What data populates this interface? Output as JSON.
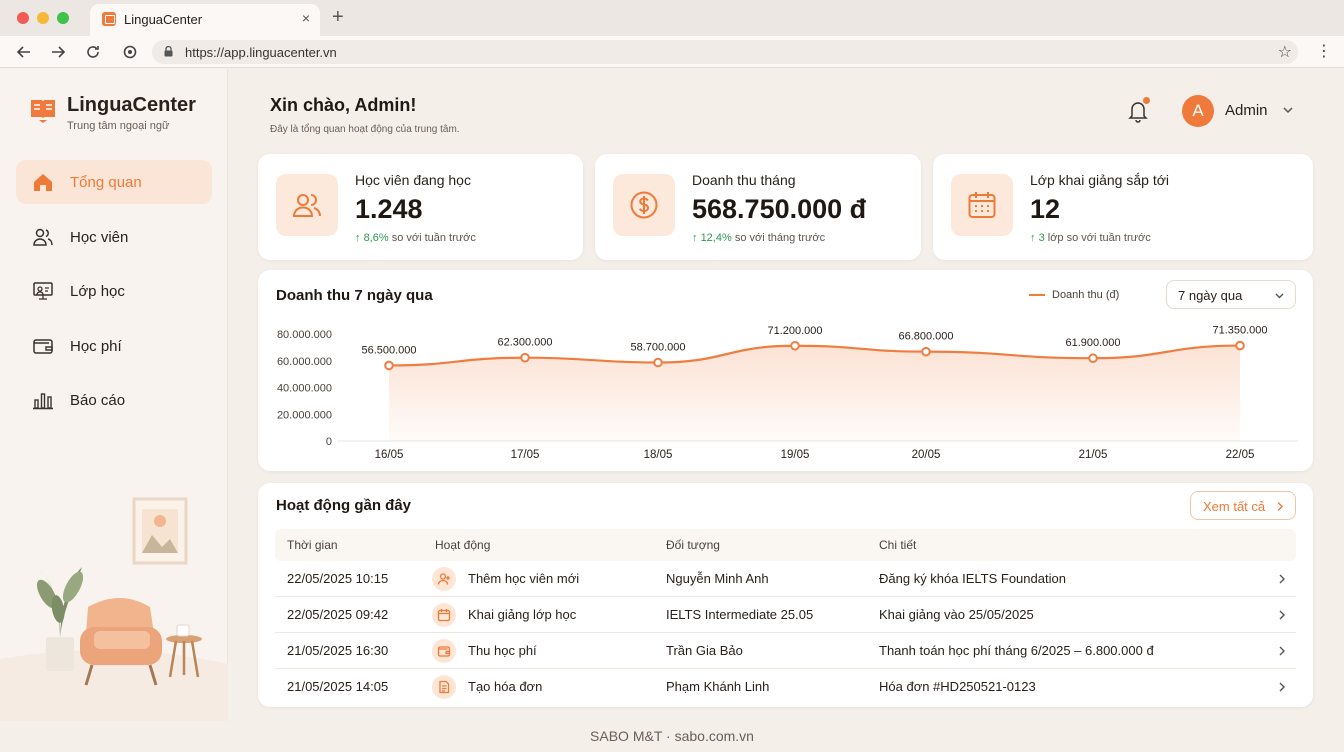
{
  "browser": {
    "tab_title": "LinguaCenter",
    "tab_close": "×",
    "new_tab": "+",
    "url": "https://app.linguacenter.vn"
  },
  "sidebar": {
    "brand": "LinguaCenter",
    "brand_sub": "Trung tâm ngoại ngữ",
    "items": [
      {
        "label": "Tổng quan",
        "icon": "home-icon",
        "active": true
      },
      {
        "label": "Học viên",
        "icon": "users-icon",
        "active": false
      },
      {
        "label": "Lớp học",
        "icon": "classroom-icon",
        "active": false
      },
      {
        "label": "Học phí",
        "icon": "wallet-icon",
        "active": false
      },
      {
        "label": "Báo cáo",
        "icon": "bar-chart-icon",
        "active": false
      }
    ]
  },
  "header": {
    "greeting": "Xin chào, Admin!",
    "subtitle": "Đây là tổng quan hoạt động của trung tâm.",
    "avatar_letter": "A",
    "user_name": "Admin"
  },
  "stats": [
    {
      "label": "Học viên đang học",
      "value": "1.248",
      "delta": "8,6%",
      "delta_text": " so với tuần trước",
      "icon": "users-icon"
    },
    {
      "label": "Doanh thu tháng",
      "value": "568.750.000 đ",
      "delta": "12,4%",
      "delta_text": " so với tháng trước",
      "icon": "dollar-coin-icon"
    },
    {
      "label": "Lớp khai giảng sắp tới",
      "value": "12",
      "delta": "3",
      "delta_text": " lớp so với tuần trước",
      "icon": "calendar-icon"
    }
  ],
  "chart_card": {
    "title": "Doanh thu 7 ngày qua",
    "legend": "Doanh thu (đ)",
    "range": "7 ngày qua"
  },
  "chart_data": {
    "type": "area",
    "title": "Doanh thu 7 ngày qua",
    "categories": [
      "16/05",
      "17/05",
      "18/05",
      "19/05",
      "20/05",
      "21/05",
      "22/05"
    ],
    "series": [
      {
        "name": "Doanh thu (đ)",
        "values": [
          56500000,
          62300000,
          58700000,
          71200000,
          66800000,
          61900000,
          71350000
        ]
      }
    ],
    "data_labels": [
      "56.500.000",
      "62.300.000",
      "58.700.000",
      "71.200.000",
      "66.800.000",
      "61.900.000",
      "71.350.000"
    ],
    "y_ticks": [
      "0",
      "20.000.000",
      "40.000.000",
      "60.000.000",
      "80.000.000"
    ],
    "ylim": [
      0,
      80000000
    ],
    "grid": false,
    "legend_position": "top-right",
    "color": "#ef7d3f"
  },
  "activity": {
    "title": "Hoạt động gần đây",
    "see_all": "Xem tất cả",
    "columns": [
      "Thời gian",
      "Hoạt động",
      "Đối tượng",
      "Chi tiết"
    ],
    "rows": [
      {
        "time": "22/05/2025 10:15",
        "action": "Thêm học viên mới",
        "icon": "user-add-icon",
        "target": "Nguyễn Minh Anh",
        "detail": "Đăng ký khóa IELTS Foundation"
      },
      {
        "time": "22/05/2025 09:42",
        "action": "Khai giảng lớp học",
        "icon": "calendar-icon",
        "target": "IELTS Intermediate 25.05",
        "detail": "Khai giảng vào 25/05/2025"
      },
      {
        "time": "21/05/2025 16:30",
        "action": "Thu học phí",
        "icon": "wallet-icon",
        "target": "Trần Gia Bảo",
        "detail": "Thanh toán học phí tháng 6/2025 – 6.800.000 đ"
      },
      {
        "time": "21/05/2025 14:05",
        "action": "Tạo hóa đơn",
        "icon": "invoice-icon",
        "target": "Phạm Khánh Linh",
        "detail": "Hóa đơn #HD250521-0123"
      }
    ]
  },
  "footer": "SABO M&T · sabo.com.vn"
}
